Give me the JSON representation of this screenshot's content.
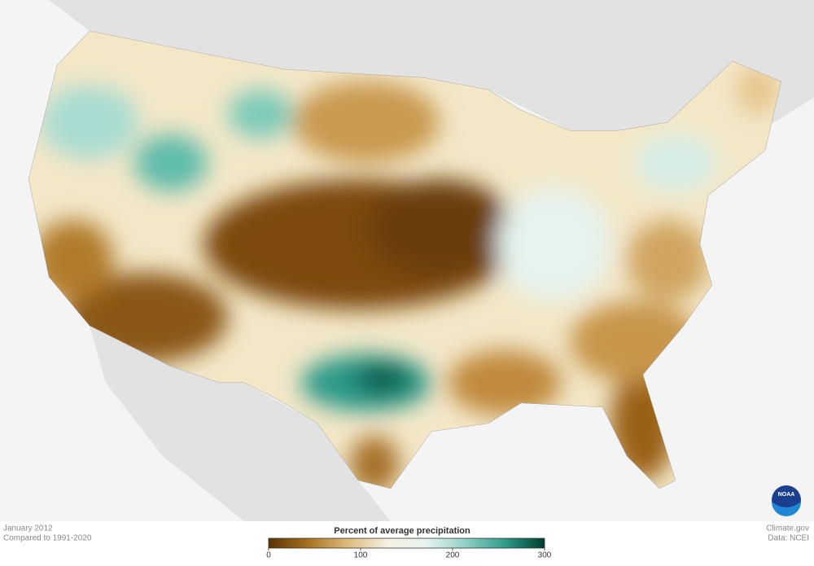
{
  "map": {
    "date": "January 2012",
    "baseline": "Compared to 1991-2020",
    "credit": "Climate.gov",
    "source": "Data: NCEI",
    "logo": "NOAA",
    "colorbar": {
      "title": "Percent of average precipitation",
      "range": [
        0,
        300
      ],
      "ticks": [
        0,
        100,
        200,
        300
      ],
      "colors": [
        "#5a3303",
        "#a9701e",
        "#dcbb7a",
        "#f6f0e0",
        "#e8f4f1",
        "#8fd0c4",
        "#2d9c8a",
        "#003c30"
      ]
    }
  }
}
